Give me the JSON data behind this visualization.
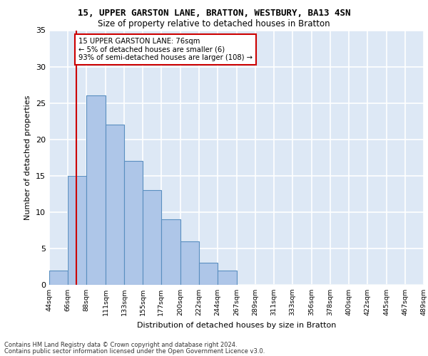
{
  "title1": "15, UPPER GARSTON LANE, BRATTON, WESTBURY, BA13 4SN",
  "title2": "Size of property relative to detached houses in Bratton",
  "xlabel": "Distribution of detached houses by size in Bratton",
  "ylabel": "Number of detached properties",
  "footer1": "Contains HM Land Registry data © Crown copyright and database right 2024.",
  "footer2": "Contains public sector information licensed under the Open Government Licence v3.0.",
  "bin_edges": [
    44,
    66,
    88,
    111,
    133,
    155,
    177,
    200,
    222,
    244,
    267,
    289,
    311,
    333,
    356,
    378,
    400,
    422,
    445,
    467,
    489
  ],
  "bin_counts": [
    2,
    15,
    26,
    22,
    17,
    13,
    9,
    6,
    3,
    2,
    0,
    0,
    0,
    0,
    0,
    0,
    0,
    0,
    0,
    0
  ],
  "bar_color": "#aec6e8",
  "bar_edge_color": "#5a8fc0",
  "property_size": 76,
  "vline_color": "#cc0000",
  "annotation_text": "15 UPPER GARSTON LANE: 76sqm\n← 5% of detached houses are smaller (6)\n93% of semi-detached houses are larger (108) →",
  "annotation_box_color": "#ffffff",
  "annotation_box_edge": "#cc0000",
  "ylim": [
    0,
    35
  ],
  "yticks": [
    0,
    5,
    10,
    15,
    20,
    25,
    30,
    35
  ],
  "bg_color": "#dde8f5",
  "grid_color": "#ffffff"
}
